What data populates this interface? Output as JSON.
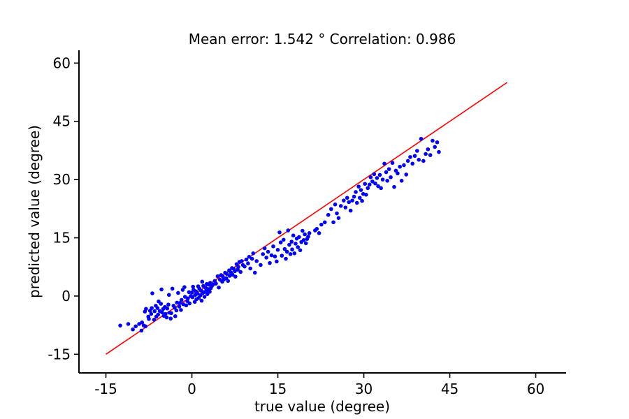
{
  "chart_data": {
    "type": "scatter",
    "title": "Mean error: 1.542 °   Correlation: 0.986",
    "xlabel": "true value (degree)",
    "ylabel": "predicted value (degree)",
    "xlim": [
      -19.7,
      65.3
    ],
    "ylim": [
      -19.8,
      63.3
    ],
    "xticks": [
      -15,
      0,
      15,
      30,
      45,
      60
    ],
    "yticks": [
      -15,
      0,
      15,
      30,
      45,
      60
    ],
    "xtick_labels": [
      "-15",
      "0",
      "15",
      "30",
      "45",
      "60"
    ],
    "ytick_labels": [
      "-15",
      "0",
      "15",
      "30",
      "45",
      "60"
    ],
    "grid": false,
    "colors": {
      "points": "#0000ff",
      "line": "#ff0000",
      "axes": "#000000"
    },
    "reference_line": {
      "x": [
        -15,
        55
      ],
      "y": [
        -15,
        55
      ]
    },
    "series": [
      {
        "points": [
          [
            -12.5,
            -7.6
          ],
          [
            -11.1,
            -7.2
          ],
          [
            -10.3,
            -8.6
          ],
          [
            -9.8,
            -7.8
          ],
          [
            -9.2,
            -7.2
          ],
          [
            -8.8,
            -8.9
          ],
          [
            -8.4,
            -7.6
          ],
          [
            -8.1,
            -7.8
          ],
          [
            -8.7,
            -6.8
          ],
          [
            -8.2,
            -4.0
          ],
          [
            -8.0,
            -3.3
          ],
          [
            -7.6,
            -5.3
          ],
          [
            -7.5,
            -5.9
          ],
          [
            -7.3,
            -3.8
          ],
          [
            -7.1,
            -4.6
          ],
          [
            -7.0,
            -3.1
          ],
          [
            -6.9,
            0.7
          ],
          [
            -6.6,
            -6.1
          ],
          [
            -6.5,
            -3.9
          ],
          [
            -6.3,
            -2.5
          ],
          [
            -6.2,
            -5.3
          ],
          [
            -6.0,
            -3.1
          ],
          [
            -5.9,
            -4.8
          ],
          [
            -5.8,
            -1.4
          ],
          [
            -5.6,
            -3.9
          ],
          [
            -5.4,
            -2.0
          ],
          [
            -5.3,
            1.7
          ],
          [
            -5.2,
            -4.2
          ],
          [
            -5.0,
            -3.3
          ],
          [
            -4.9,
            -5.1
          ],
          [
            -4.7,
            -2.8
          ],
          [
            -4.6,
            -4.6
          ],
          [
            -4.4,
            -5.5
          ],
          [
            -4.3,
            -3.2
          ],
          [
            -4.1,
            -2.2
          ],
          [
            -4.0,
            0.3
          ],
          [
            -3.9,
            -4.3
          ],
          [
            -3.7,
            -5.8
          ],
          [
            -3.6,
            -4.4
          ],
          [
            -3.4,
            1.9
          ],
          [
            -3.2,
            -2.5
          ],
          [
            -3.0,
            -3.0
          ],
          [
            -2.9,
            -5.2
          ],
          [
            -2.7,
            -3.7
          ],
          [
            -2.6,
            -1.7
          ],
          [
            -2.4,
            0.8
          ],
          [
            -2.2,
            -2.7
          ],
          [
            -2.1,
            -1.8
          ],
          [
            -1.9,
            -3.6
          ],
          [
            -1.8,
            -1.0
          ],
          [
            -1.6,
            1.6
          ],
          [
            -1.5,
            -2.1
          ],
          [
            -1.3,
            2.3
          ],
          [
            -1.2,
            -0.2
          ],
          [
            -1.0,
            -2.4
          ],
          [
            -0.8,
            -1.3
          ],
          [
            -0.7,
            -0.6
          ],
          [
            -0.5,
            1.0
          ],
          [
            -0.4,
            -1.9
          ],
          [
            -0.2,
            0.0
          ],
          [
            0.0,
            0.9
          ],
          [
            0.1,
            -0.3
          ],
          [
            0.2,
            2.4
          ],
          [
            0.3,
            1.6
          ],
          [
            0.5,
            -1.5
          ],
          [
            0.6,
            0.3
          ],
          [
            0.7,
            1.2
          ],
          [
            0.8,
            -0.8
          ],
          [
            1.0,
            0.6
          ],
          [
            1.1,
            2.5
          ],
          [
            1.2,
            -0.5
          ],
          [
            1.3,
            1.9
          ],
          [
            1.5,
            0.2
          ],
          [
            1.6,
            1.4
          ],
          [
            1.7,
            -1.2
          ],
          [
            1.8,
            3.7
          ],
          [
            1.9,
            0.8
          ],
          [
            2.0,
            2.6
          ],
          [
            2.1,
            1.0
          ],
          [
            2.2,
            -0.2
          ],
          [
            2.4,
            2.1
          ],
          [
            2.5,
            1.3
          ],
          [
            2.6,
            3.1
          ],
          [
            2.7,
            0.5
          ],
          [
            2.8,
            1.8
          ],
          [
            3.0,
            2.9
          ],
          [
            3.1,
            1.1
          ],
          [
            3.2,
            3.4
          ],
          [
            3.3,
            2.0
          ],
          [
            3.5,
            2.6
          ],
          [
            3.7,
            3.0
          ],
          [
            4.0,
            3.9
          ],
          [
            4.2,
            3.2
          ],
          [
            4.5,
            5.1
          ],
          [
            4.7,
            2.2
          ],
          [
            4.9,
            4.2
          ],
          [
            5.1,
            5.4
          ],
          [
            5.3,
            3.7
          ],
          [
            5.4,
            5.0
          ],
          [
            5.6,
            4.3
          ],
          [
            5.8,
            6.0
          ],
          [
            6.0,
            4.6
          ],
          [
            6.1,
            5.7
          ],
          [
            6.3,
            3.9
          ],
          [
            6.5,
            6.6
          ],
          [
            6.6,
            5.2
          ],
          [
            6.8,
            6.1
          ],
          [
            7.0,
            7.2
          ],
          [
            7.1,
            5.5
          ],
          [
            7.3,
            7.0
          ],
          [
            7.5,
            6.4
          ],
          [
            7.6,
            5.0
          ],
          [
            7.8,
            8.2
          ],
          [
            8.0,
            6.8
          ],
          [
            8.1,
            7.5
          ],
          [
            8.3,
            8.8
          ],
          [
            8.5,
            6.2
          ],
          [
            8.7,
            9.0
          ],
          [
            8.9,
            8.0
          ],
          [
            9.2,
            7.6
          ],
          [
            9.5,
            9.4
          ],
          [
            9.8,
            8.4
          ],
          [
            10.0,
            10.1
          ],
          [
            10.2,
            7.1
          ],
          [
            10.5,
            9.6
          ],
          [
            10.7,
            11.0
          ],
          [
            11.0,
            6.0
          ],
          [
            11.3,
            9.0
          ],
          [
            12.0,
            8.0
          ],
          [
            12.4,
            10.8
          ],
          [
            12.7,
            12.3
          ],
          [
            13.0,
            9.9
          ],
          [
            13.3,
            11.4
          ],
          [
            13.6,
            8.5
          ],
          [
            13.9,
            10.5
          ],
          [
            14.2,
            12.8
          ],
          [
            14.5,
            10.2
          ],
          [
            14.8,
            8.9
          ],
          [
            15.0,
            11.9
          ],
          [
            15.3,
            16.4
          ],
          [
            15.5,
            13.8
          ],
          [
            15.7,
            10.4
          ],
          [
            16.0,
            14.5
          ],
          [
            16.2,
            12.1
          ],
          [
            16.4,
            9.6
          ],
          [
            16.6,
            11.4
          ],
          [
            16.8,
            16.9
          ],
          [
            17.0,
            13.2
          ],
          [
            17.2,
            10.8
          ],
          [
            17.4,
            14.0
          ],
          [
            17.5,
            12.0
          ],
          [
            17.7,
            15.6
          ],
          [
            17.9,
            11.0
          ],
          [
            18.1,
            13.5
          ],
          [
            18.3,
            14.8
          ],
          [
            18.5,
            12.6
          ],
          [
            18.7,
            15.2
          ],
          [
            18.9,
            11.8
          ],
          [
            19.1,
            13.9
          ],
          [
            19.3,
            16.8
          ],
          [
            19.5,
            14.4
          ],
          [
            19.7,
            15.9
          ],
          [
            19.9,
            13.6
          ],
          [
            20.1,
            14.7
          ],
          [
            20.3,
            15.3
          ],
          [
            20.5,
            16.2
          ],
          [
            21.5,
            16.9
          ],
          [
            21.8,
            17.3
          ],
          [
            22.2,
            16.2
          ],
          [
            22.6,
            18.4
          ],
          [
            23.2,
            19.0
          ],
          [
            23.8,
            20.9
          ],
          [
            24.3,
            22.4
          ],
          [
            24.7,
            19.0
          ],
          [
            25.0,
            23.6
          ],
          [
            25.3,
            21.3
          ],
          [
            25.6,
            20.1
          ],
          [
            26.0,
            23.2
          ],
          [
            26.5,
            24.6
          ],
          [
            26.8,
            22.8
          ],
          [
            27.1,
            25.3
          ],
          [
            27.4,
            24.2
          ],
          [
            27.7,
            22.0
          ],
          [
            28.0,
            24.6
          ],
          [
            28.3,
            25.6
          ],
          [
            28.6,
            26.8
          ],
          [
            28.8,
            24.0
          ],
          [
            29.1,
            28.2
          ],
          [
            29.3,
            25.3
          ],
          [
            29.5,
            27.3
          ],
          [
            29.7,
            24.5
          ],
          [
            29.9,
            26.3
          ],
          [
            30.2,
            28.9
          ],
          [
            30.4,
            26.1
          ],
          [
            30.7,
            27.8
          ],
          [
            31.0,
            28.7
          ],
          [
            31.2,
            30.6
          ],
          [
            31.5,
            29.5
          ],
          [
            31.8,
            31.4
          ],
          [
            32.0,
            29.0
          ],
          [
            32.3,
            30.4
          ],
          [
            32.5,
            28.3
          ],
          [
            32.8,
            31.2
          ],
          [
            33.0,
            27.8
          ],
          [
            33.3,
            30.0
          ],
          [
            33.6,
            34.1
          ],
          [
            33.9,
            31.9
          ],
          [
            34.1,
            29.7
          ],
          [
            34.4,
            32.7
          ],
          [
            34.7,
            30.6
          ],
          [
            35.0,
            34.3
          ],
          [
            35.3,
            28.1
          ],
          [
            35.6,
            32.3
          ],
          [
            35.9,
            31.6
          ],
          [
            36.3,
            33.3
          ],
          [
            36.6,
            29.7
          ],
          [
            37.0,
            33.7
          ],
          [
            37.4,
            31.3
          ],
          [
            37.7,
            34.8
          ],
          [
            38.1,
            35.8
          ],
          [
            38.5,
            34.1
          ],
          [
            38.9,
            36.1
          ],
          [
            39.3,
            37.4
          ],
          [
            39.6,
            35.1
          ],
          [
            40.0,
            40.5
          ],
          [
            40.4,
            34.8
          ],
          [
            40.8,
            36.6
          ],
          [
            41.2,
            37.8
          ],
          [
            41.6,
            36.3
          ],
          [
            42.0,
            40.0
          ],
          [
            42.4,
            38.4
          ],
          [
            42.8,
            39.6
          ],
          [
            43.1,
            37.1
          ]
        ]
      }
    ]
  }
}
